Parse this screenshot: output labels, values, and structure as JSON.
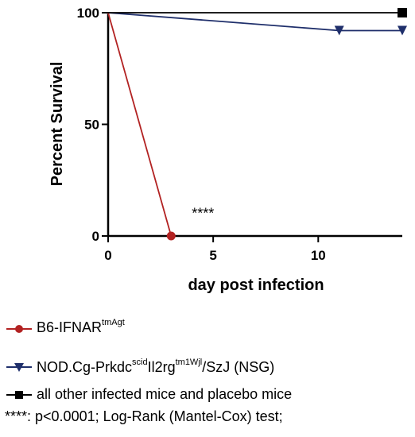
{
  "chart_data": {
    "type": "line",
    "xlabel": "day post infection",
    "ylabel": "Percent Survival",
    "xlim": [
      0,
      14
    ],
    "ylim": [
      0,
      100
    ],
    "xticks": [
      "0",
      "5",
      "10"
    ],
    "xtick_values": [
      0,
      5,
      10
    ],
    "yticks": [
      "0",
      "50",
      "100"
    ],
    "ytick_values": [
      0,
      50,
      100
    ],
    "grid": false,
    "legend_placement": "bottom",
    "annotations": [
      {
        "text": "****",
        "x": 3.3,
        "y": 8
      }
    ],
    "series": [
      {
        "name_main": "B6-IFNAR",
        "name_sup": "tmAgt",
        "color": "#b22222",
        "marker": "circle",
        "x": [
          0,
          3
        ],
        "y": [
          100,
          0
        ],
        "marker_x": [
          3
        ],
        "marker_y": [
          0
        ]
      },
      {
        "name_parts": [
          "NOD.Cg-Prkdc",
          "scid",
          "Il2rg",
          "tm1Wjl",
          "/SzJ (NSG)"
        ],
        "color": "#1f2f6b",
        "marker": "triangle-down",
        "x": [
          0,
          11,
          14
        ],
        "y": [
          100,
          92,
          92
        ],
        "marker_x": [
          11,
          14
        ],
        "marker_y": [
          92,
          92
        ]
      },
      {
        "name": "all other infected mice and placebo mice",
        "color": "#000000",
        "marker": "square",
        "x": [
          0,
          14
        ],
        "y": [
          100,
          100
        ],
        "marker_x": [
          14
        ],
        "marker_y": [
          100
        ]
      }
    ]
  },
  "footnote": "****: p<0.0001; Log-Rank (Mantel-Cox) test;"
}
